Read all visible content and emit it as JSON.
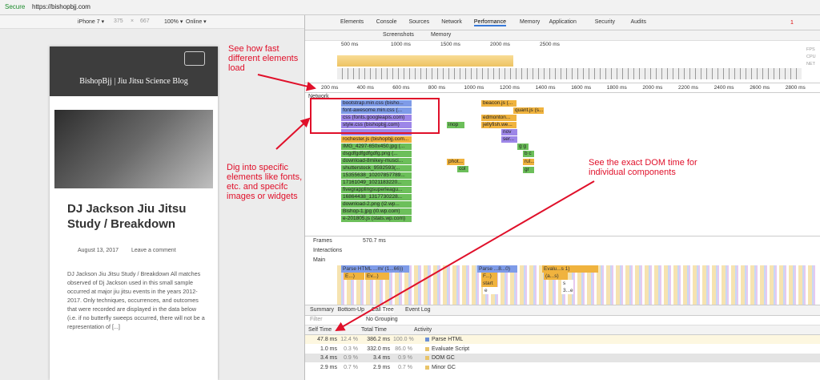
{
  "browser": {
    "secure": "Secure",
    "url": "https://bishopbjj.com"
  },
  "device_toolbar": {
    "device": "iPhone 7 ▾",
    "width": "375",
    "x": "×",
    "height": "667",
    "zoom": "100% ▾",
    "network": "Online ▾"
  },
  "site": {
    "title": "BishopBjj | Jiu Jitsu Science Blog",
    "post_title": "DJ Jackson Jiu Jitsu Study / Breakdown",
    "date": "August 13, 2017",
    "comments": "Leave a comment",
    "body": "DJ Jackson Jiu Jitsu Study / Breakdown All matches observed of Dj Jackson used in this small sample occurred at major jiu jitsu events in the years 2012-2017. Only techniques, occurrences, and outcomes that were recorded are displayed in the data below (i.e. if no butterfly sweeps occurred, there will not be a representation of [...]"
  },
  "annotations": [
    "See how fast different elements load",
    "Dig into specific elements like fonts, etc. and specifc images or widgets",
    "See the exact DOM time for individual components"
  ],
  "devtools": {
    "tabs": [
      "Elements",
      "Console",
      "Sources",
      "Network",
      "Performance",
      "Memory",
      "Application",
      "Security",
      "Audits"
    ],
    "active_tab": "Performance",
    "error_count": "1",
    "toolbar": {
      "screenshots": "Screenshots",
      "memory": "Memory"
    },
    "overview_ticks": [
      "500 ms",
      "1000 ms",
      "1500 ms",
      "2000 ms",
      "2500 ms"
    ],
    "overview_lanes": [
      "FPS",
      "CPU",
      "NET"
    ],
    "ruler_ticks": [
      "200 ms",
      "400 ms",
      "600 ms",
      "800 ms",
      "1000 ms",
      "1200 ms",
      "1400 ms",
      "1600 ms",
      "1800 ms",
      "2000 ms",
      "2200 ms",
      "2400 ms",
      "2600 ms",
      "2800 ms"
    ],
    "network": {
      "label": "Network",
      "requests": [
        "bootstrap.min.css (bisho...",
        "font-awesome.min.css (...",
        "css (fonts.googleapis.com)",
        "style.css (bishopbjj.com)",
        "rochester.js (bishopbjj.com...",
        "IMG_4297-650x450.jpg (...",
        "dsgdfgdfgdfgdfg.png (...",
        "download-8mikey-musci...",
        "shutterstock_9592593(...",
        "15355638_10207857789...",
        "17161049_1021183220...",
        "fivegrapplingsuperleagu...",
        "16864438_1317730228...",
        "download-2.png (i2.wp...",
        "Bishop-1.jpg (i0.wp.com)",
        "e-201805.js (stats.wp.com)",
        "beacon.js (...",
        "quant.js (s...",
        "edmonton...",
        "jellyfish.we...",
        "inop",
        "nov",
        "ser...",
        "phot...",
        "col",
        "g g",
        "b c",
        "rul...",
        "gr"
      ]
    },
    "tracks": {
      "frames": "Frames",
      "frames_time": "570.7 ms",
      "interactions": "Interactions",
      "main": "Main",
      "flame": [
        "Parse HTML ...m/ (1...66))",
        "Parse ...8...0)",
        "Evalu...s 1)",
        "E...)",
        "Ev...)",
        "F...)",
        "(a...s)",
        "start",
        "e",
        "s",
        "3...e"
      ]
    },
    "bottom_tabs": [
      "Summary",
      "Bottom-Up",
      "Call Tree",
      "Event Log"
    ],
    "active_bottom_tab": "Call Tree",
    "filter": "Filter",
    "grouping": "No Grouping",
    "table": {
      "headers": [
        "Self Time",
        "Total Time",
        "Activity"
      ],
      "rows": [
        [
          "47.8 ms",
          "12.4 %",
          "386.2 ms",
          "100.0 %",
          "Parse HTML"
        ],
        [
          "1.0 ms",
          "0.3 %",
          "332.0 ms",
          "86.0 %",
          "Evaluate Script"
        ],
        [
          "3.4 ms",
          "0.9 %",
          "3.4 ms",
          "0.9 %",
          "DOM GC"
        ],
        [
          "2.9 ms",
          "0.7 %",
          "2.9 ms",
          "0.7 %",
          "Minor GC"
        ]
      ]
    }
  }
}
